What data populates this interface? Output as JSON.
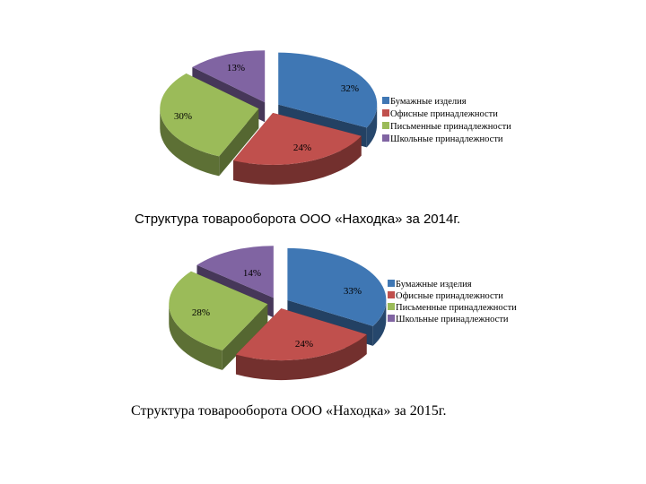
{
  "chart_data": [
    {
      "type": "pie",
      "categories": [
        "Бумажные изделия",
        "Офисные принадлежности",
        "Письменные принадлежности",
        "Школьные принадлежности"
      ],
      "values": [
        32,
        24,
        30,
        13
      ],
      "value_labels": [
        "32%",
        "24%",
        "30%",
        "13%"
      ],
      "colors": [
        "#3F77B4",
        "#C0504D",
        "#9BBB59",
        "#8064A2"
      ],
      "legend_position": "right",
      "exploded": true,
      "three_d": true,
      "title": "Структура товарооборота  ООО «Находка» за 2014г."
    },
    {
      "type": "pie",
      "categories": [
        "Бумажные изделия",
        "Офисные принадлежности",
        "Письменные принадлежности",
        "Школьные принадлежности"
      ],
      "values": [
        33,
        24,
        28,
        14
      ],
      "value_labels": [
        "33%",
        "24%",
        "28%",
        "14%"
      ],
      "colors": [
        "#3F77B4",
        "#C0504D",
        "#9BBB59",
        "#8064A2"
      ],
      "legend_position": "right",
      "exploded": true,
      "three_d": true,
      "title": "Структура товарооборота  ООО «Находка» за  2015г."
    }
  ]
}
